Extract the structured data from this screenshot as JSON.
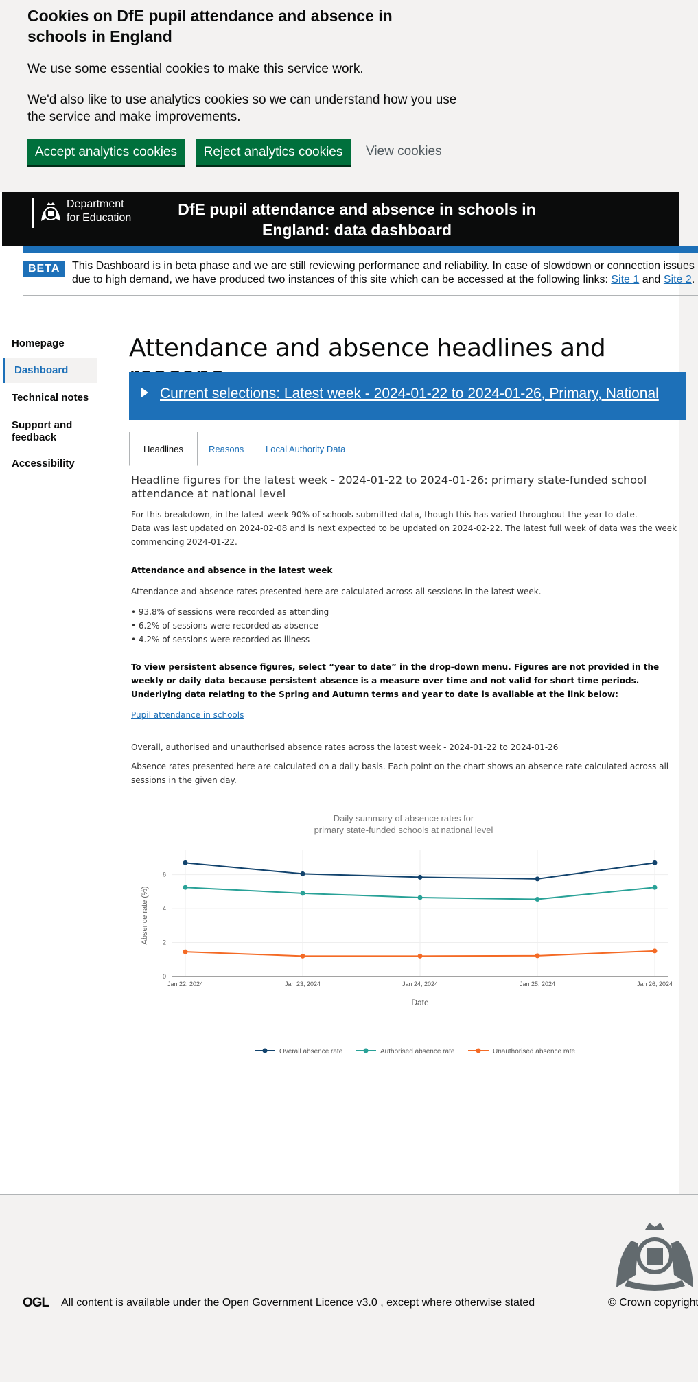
{
  "cookie_banner": {
    "heading": "Cookies on DfE pupil attendance and absence in schools in England",
    "p1": "We use some essential cookies to make this service work.",
    "p2": "We'd also like to use analytics cookies so we can understand how you use the service and make improvements.",
    "accept": "Accept analytics cookies",
    "reject": "Reject analytics cookies",
    "view": "View cookies"
  },
  "header": {
    "logo_line1": "Department",
    "logo_line2": "for Education",
    "title": "DfE pupil attendance and absence in schools in England: data dashboard"
  },
  "beta": {
    "tag": "BETA",
    "text": "This Dashboard is in beta phase and we are still reviewing performance and reliability. In case of slowdown or connection issues due to high demand, we have produced two instances of this site which can be accessed at the following links:",
    "site1": "Site 1",
    "and": "and",
    "site2": "Site 2",
    "end": "."
  },
  "nav": {
    "items": [
      {
        "label": "Homepage"
      },
      {
        "label": "Dashboard"
      },
      {
        "label": "Technical notes"
      },
      {
        "label": "Support and feedback"
      },
      {
        "label": "Accessibility"
      }
    ]
  },
  "main": {
    "title": "Attendance and absence headlines and reasons",
    "selections": "Current selections: Latest week - 2024-01-22 to 2024-01-26, Primary, National",
    "tabs": [
      {
        "label": "Headlines"
      },
      {
        "label": "Reasons"
      },
      {
        "label": "Local Authority Data"
      }
    ],
    "headline": "Headline figures for the latest week - 2024-01-22 to 2024-01-26: primary state-funded school attendance at national level",
    "intro1": "For this breakdown, in the latest week 90% of schools submitted data, though this has varied throughout the year-to-date.",
    "intro2": "Data was last updated on 2024-02-08 and is next expected to be updated on 2024-02-22. The latest full week of data was the week commencing 2024-01-22.",
    "section_heading": "Attendance and absence in the latest week",
    "section_text": "Attendance and absence rates presented here are calculated across all sessions in the latest week.",
    "bullets": [
      "• 93.8% of sessions were recorded as attending",
      "• 6.2% of sessions were recorded as absence",
      "• 4.2% of sessions were recorded as illness"
    ],
    "persistent_note": "To view persistent absence figures, select “year to date” in the drop-down menu. Figures are not provided in the weekly or daily data because persistent absence is a measure over time and not valid for short time periods. Underlying data relating to the Spring and Autumn terms and year to date is available at the link below:",
    "link": "Pupil attendance in schools",
    "chart_heading": "Overall, authorised and unauthorised absence rates across the latest week - 2024-01-22 to 2024-01-26",
    "chart_desc": "Absence rates presented here are calculated on a daily basis. Each point on the chart shows an absence rate calculated across all sessions in the given day."
  },
  "chart_data": {
    "type": "line",
    "title": "Daily summary of absence rates for primary state-funded schools at national level",
    "xlabel": "Date",
    "ylabel": "Absence rate (%)",
    "categories": [
      "Jan 22, 2024",
      "Jan 23, 2024",
      "Jan 24, 2024",
      "Jan 25, 2024",
      "Jan 26, 2024"
    ],
    "yticks": [
      "0",
      "2",
      "4",
      "6"
    ],
    "ylim": [
      0,
      7.2
    ],
    "grid": true,
    "legend_position": "bottom",
    "series": [
      {
        "name": "Overall absence rate",
        "color": "#12436d",
        "values": [
          6.7,
          6.05,
          5.85,
          5.75,
          6.7
        ]
      },
      {
        "name": "Authorised absence rate",
        "color": "#28a197",
        "values": [
          5.25,
          4.9,
          4.65,
          4.55,
          5.25
        ]
      },
      {
        "name": "Unauthorised absence rate",
        "color": "#f46a25",
        "values": [
          1.45,
          1.2,
          1.2,
          1.22,
          1.5
        ]
      }
    ]
  },
  "footer": {
    "ogl": "OGL",
    "licence_pre": "All content is available under the",
    "licence_link": "Open Government Licence v3.0",
    "licence_post": ", except where otherwise stated",
    "crown": "© Crown copyright"
  }
}
